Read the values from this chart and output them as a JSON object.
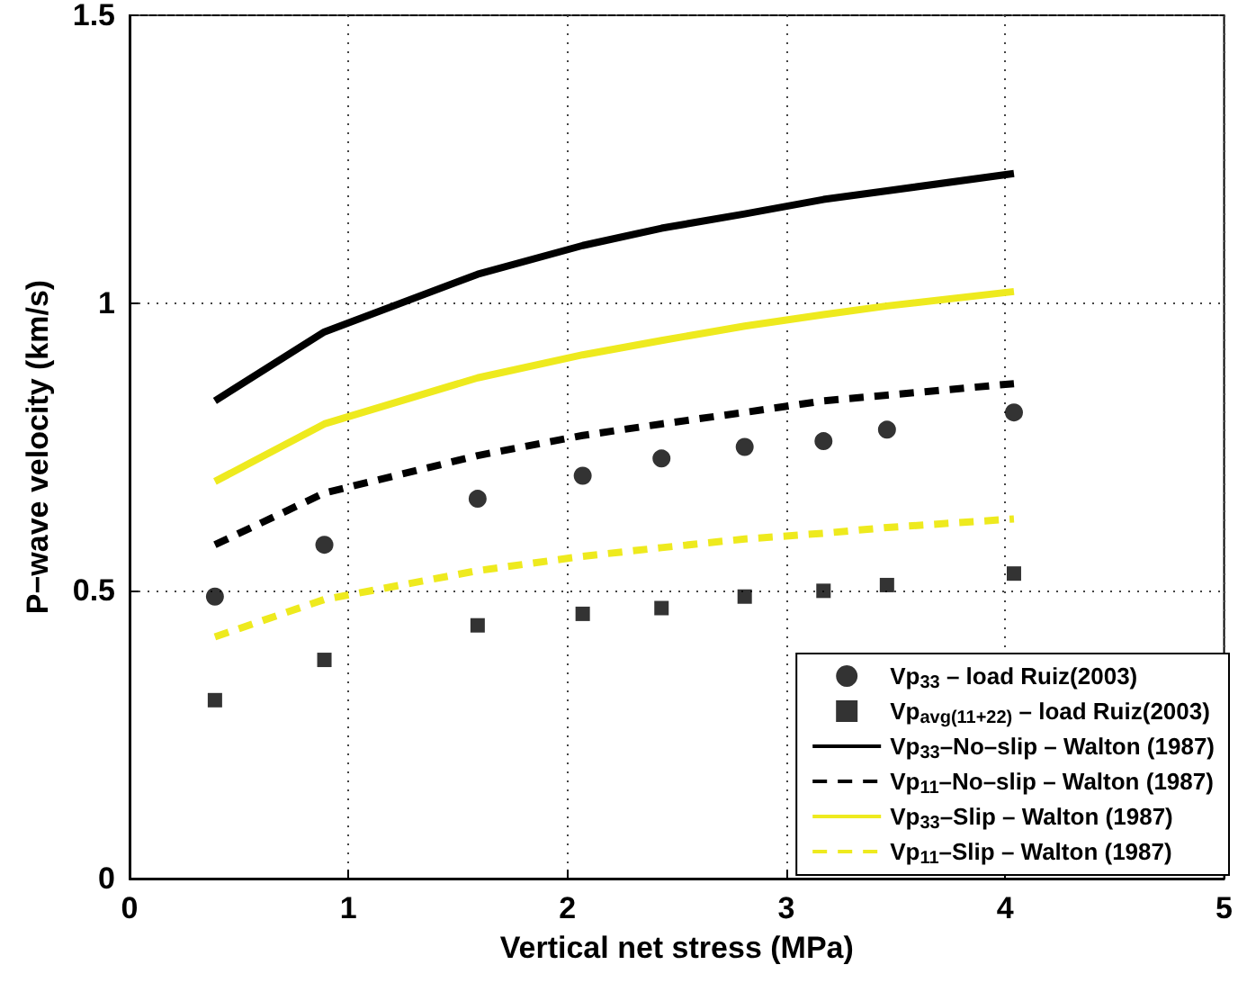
{
  "chart_data": {
    "type": "line",
    "xlabel": "Vertical net stress (MPa)",
    "ylabel": "P−wave velocity (km/s)",
    "x": [
      0.39,
      0.89,
      1.59,
      2.07,
      2.43,
      2.81,
      3.17,
      3.46,
      4.04
    ],
    "series": [
      {
        "name": "Vp$_{33}$ – load Ruiz(2003)",
        "type": "scatter",
        "marker": "circle",
        "color": "#000000",
        "values": [
          0.49,
          0.58,
          0.66,
          0.7,
          0.73,
          0.75,
          0.76,
          0.78,
          0.81
        ]
      },
      {
        "name": "Vp$_{avg(11+22)}$ – load Ruiz(2003)",
        "type": "scatter",
        "marker": "square",
        "color": "#000000",
        "values": [
          0.31,
          0.38,
          0.44,
          0.46,
          0.47,
          0.49,
          0.5,
          0.51,
          0.53
        ]
      },
      {
        "name": "Vp$_{33}$–No–slip – Walton (1987)",
        "type": "line",
        "line_style": "solid",
        "color": "#000000",
        "values": [
          0.83,
          0.95,
          1.05,
          1.1,
          1.13,
          1.155,
          1.18,
          1.195,
          1.225
        ]
      },
      {
        "name": "Vp$_{11}$–No–slip – Walton (1987)",
        "type": "line",
        "line_style": "dashed",
        "color": "#000000",
        "values": [
          0.58,
          0.67,
          0.735,
          0.77,
          0.79,
          0.81,
          0.83,
          0.84,
          0.86
        ]
      },
      {
        "name": "Vp$_{33}$–Slip – Walton (1987)",
        "type": "line",
        "line_style": "solid",
        "color": "#eeea1e",
        "values": [
          0.69,
          0.79,
          0.87,
          0.91,
          0.935,
          0.96,
          0.98,
          0.995,
          1.02
        ]
      },
      {
        "name": "Vp$_{11}$–Slip – Walton (1987)",
        "type": "line",
        "line_style": "dashed",
        "color": "#eeea1e",
        "values": [
          0.42,
          0.485,
          0.535,
          0.56,
          0.575,
          0.59,
          0.6,
          0.61,
          0.625
        ]
      }
    ],
    "xlim": [
      0,
      5
    ],
    "xticks": [
      0,
      1,
      2,
      3,
      4,
      5
    ],
    "ylim": [
      0,
      1.5
    ],
    "yticks": [
      0,
      0.5,
      1,
      1.5
    ],
    "grid": true,
    "legend": "bottom right"
  }
}
